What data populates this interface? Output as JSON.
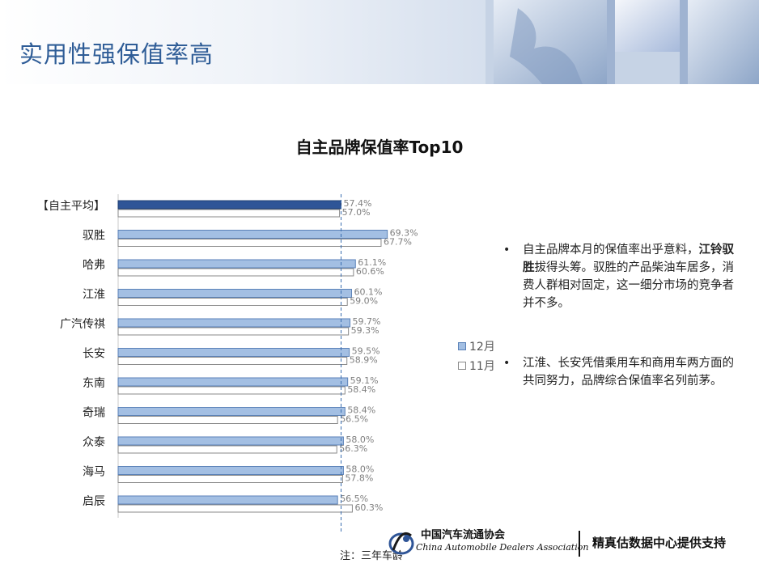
{
  "header": {
    "title": "实用性强保值率高"
  },
  "chart_data": {
    "type": "bar",
    "orientation": "horizontal",
    "title": "自主品牌保值率Top10",
    "categories": [
      "【自主平均】",
      "驭胜",
      "哈弗",
      "江淮",
      "广汽传祺",
      "长安",
      "东南",
      "奇瑞",
      "众泰",
      "海马",
      "启辰"
    ],
    "series": [
      {
        "name": "12月",
        "values": [
          57.4,
          69.3,
          61.1,
          60.1,
          59.7,
          59.5,
          59.1,
          58.4,
          58.0,
          58.0,
          56.5
        ],
        "color": "#a3bfe3",
        "highlight_color": "#2f5597"
      },
      {
        "name": "11月",
        "values": [
          57.0,
          67.7,
          60.6,
          59.0,
          59.3,
          58.9,
          58.4,
          56.5,
          56.3,
          57.8,
          60.3
        ],
        "color": "#ffffff"
      }
    ],
    "value_suffix": "%",
    "reference_line": 57.4,
    "legend_position": "right",
    "grid": false
  },
  "bullets": {
    "item1_before": "自主品牌本月的保值率出乎意料，",
    "item1_bold": "江铃驭胜",
    "item1_after": "拔得头筹。驭胜的产品柴油车居多，消费人群相对固定，这一细分市场的竞争者并不多。",
    "item2": "江淮、长安凭借乘用车和商用车两方面的共同努力，品牌综合保值率名列前茅。"
  },
  "note": "注：三年车龄",
  "footer": {
    "logo_cn": "中国汽车流通协会",
    "logo_en": "China Automobile Dealers Association",
    "support": "精真估数据中心提供支持"
  }
}
